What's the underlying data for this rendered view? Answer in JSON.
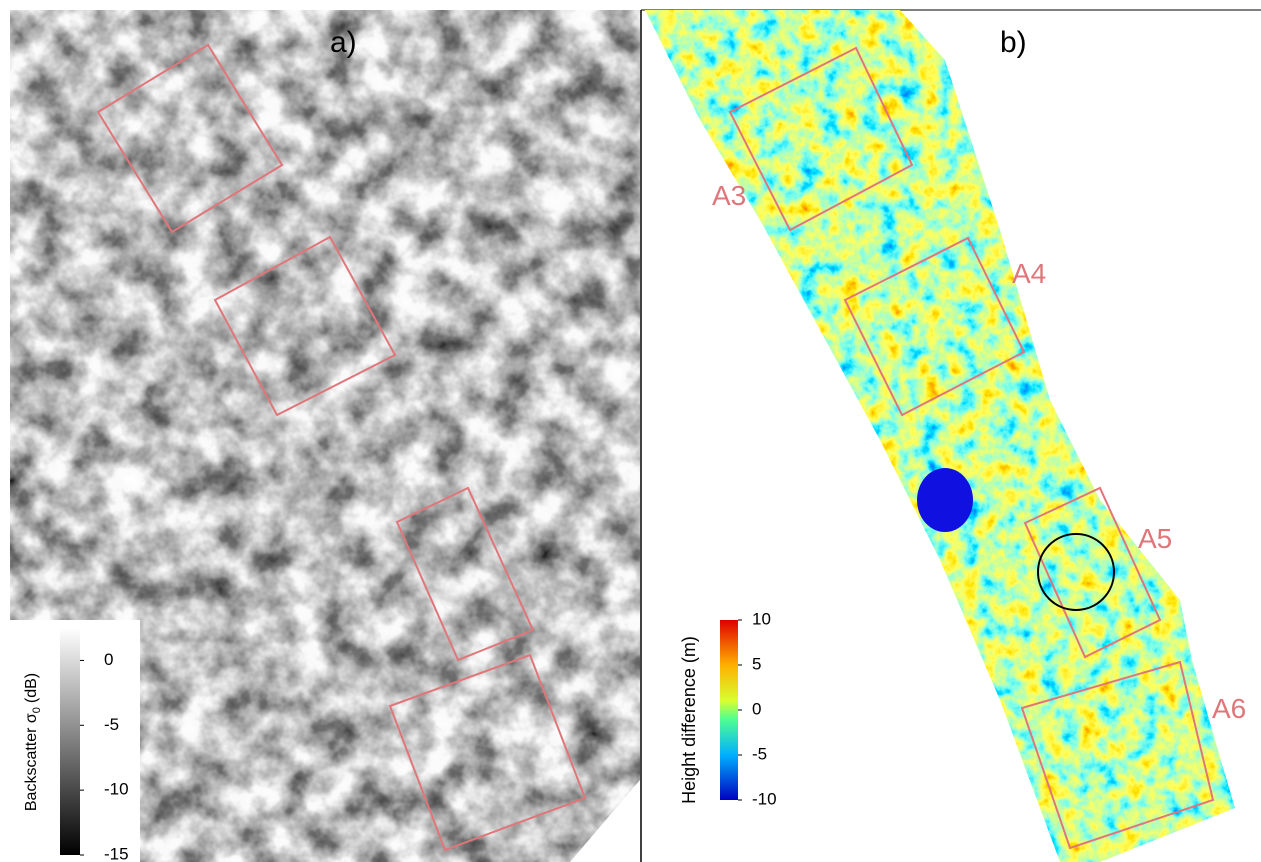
{
  "panels": {
    "a": {
      "label": "a)",
      "colorbar": {
        "title": "Backscatter σ",
        "title_sub": "0",
        "title_unit": "(dB)",
        "lim": [
          -15,
          2.5
        ],
        "ticks": [
          0,
          -5,
          -10,
          -15
        ]
      }
    },
    "b": {
      "label": "b)",
      "areas": [
        "A3",
        "A4",
        "A5",
        "A6"
      ],
      "colorbar": {
        "title": "Height difference  (m)",
        "lim": [
          -10,
          10
        ],
        "ticks": [
          10,
          5,
          0,
          -5,
          -10
        ]
      }
    }
  }
}
